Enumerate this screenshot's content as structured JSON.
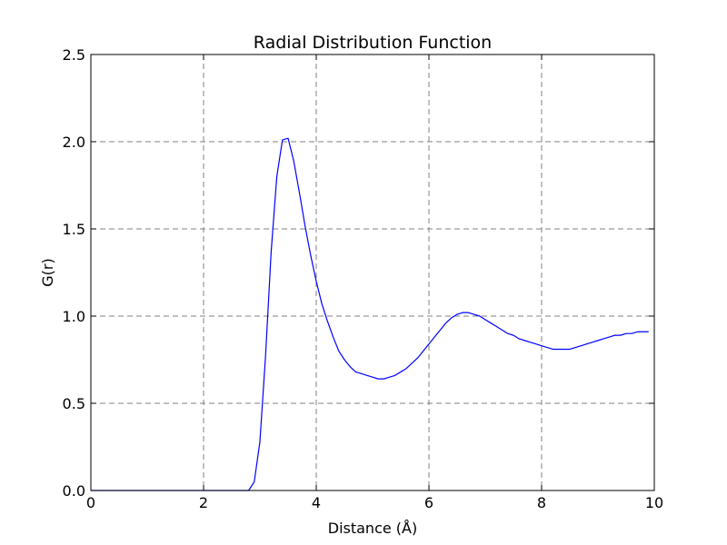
{
  "chart_data": {
    "type": "line",
    "title": "Radial Distribution Function",
    "xlabel": "Distance (Å)",
    "ylabel": "G(r)",
    "xlim": [
      0,
      10
    ],
    "ylim": [
      0,
      2.5
    ],
    "xticks": [
      0,
      2,
      4,
      6,
      8,
      10
    ],
    "xtick_labels": [
      "0",
      "2",
      "4",
      "6",
      "8",
      "10"
    ],
    "yticks": [
      0,
      0.5,
      1.0,
      1.5,
      2.0,
      2.5
    ],
    "ytick_labels": [
      "0.0",
      "0.5",
      "1.0",
      "1.5",
      "2.0",
      "2.5"
    ],
    "grid": true,
    "line_color": "#0000ff",
    "grid_color": "#808080",
    "series": [
      {
        "x": [
          0.0,
          2.8,
          2.9,
          3.0,
          3.1,
          3.2,
          3.3,
          3.4,
          3.5,
          3.6,
          3.7,
          3.8,
          3.9,
          4.0,
          4.1,
          4.2,
          4.3,
          4.4,
          4.5,
          4.6,
          4.7,
          4.8,
          4.9,
          5.0,
          5.1,
          5.2,
          5.3,
          5.4,
          5.5,
          5.6,
          5.7,
          5.8,
          5.9,
          6.0,
          6.1,
          6.2,
          6.3,
          6.4,
          6.5,
          6.6,
          6.7,
          6.8,
          6.9,
          7.0,
          7.1,
          7.2,
          7.3,
          7.4,
          7.5,
          7.6,
          7.7,
          7.8,
          7.9,
          8.0,
          8.1,
          8.2,
          8.3,
          8.4,
          8.5,
          8.6,
          8.7,
          8.8,
          8.9,
          9.0,
          9.1,
          9.2,
          9.3,
          9.4,
          9.5,
          9.6,
          9.7,
          9.8,
          9.9
        ],
        "y": [
          0.0,
          0.0,
          0.05,
          0.28,
          0.77,
          1.37,
          1.8,
          2.01,
          2.02,
          1.89,
          1.71,
          1.52,
          1.35,
          1.2,
          1.07,
          0.97,
          0.88,
          0.8,
          0.75,
          0.71,
          0.68,
          0.67,
          0.66,
          0.65,
          0.64,
          0.64,
          0.65,
          0.66,
          0.68,
          0.7,
          0.73,
          0.76,
          0.8,
          0.84,
          0.88,
          0.92,
          0.96,
          0.99,
          1.01,
          1.02,
          1.02,
          1.01,
          1.0,
          0.98,
          0.96,
          0.94,
          0.92,
          0.9,
          0.89,
          0.87,
          0.86,
          0.85,
          0.84,
          0.83,
          0.82,
          0.81,
          0.81,
          0.81,
          0.81,
          0.82,
          0.83,
          0.84,
          0.85,
          0.86,
          0.87,
          0.88,
          0.89,
          0.89,
          0.9,
          0.9,
          0.91,
          0.91,
          0.91
        ]
      }
    ]
  }
}
